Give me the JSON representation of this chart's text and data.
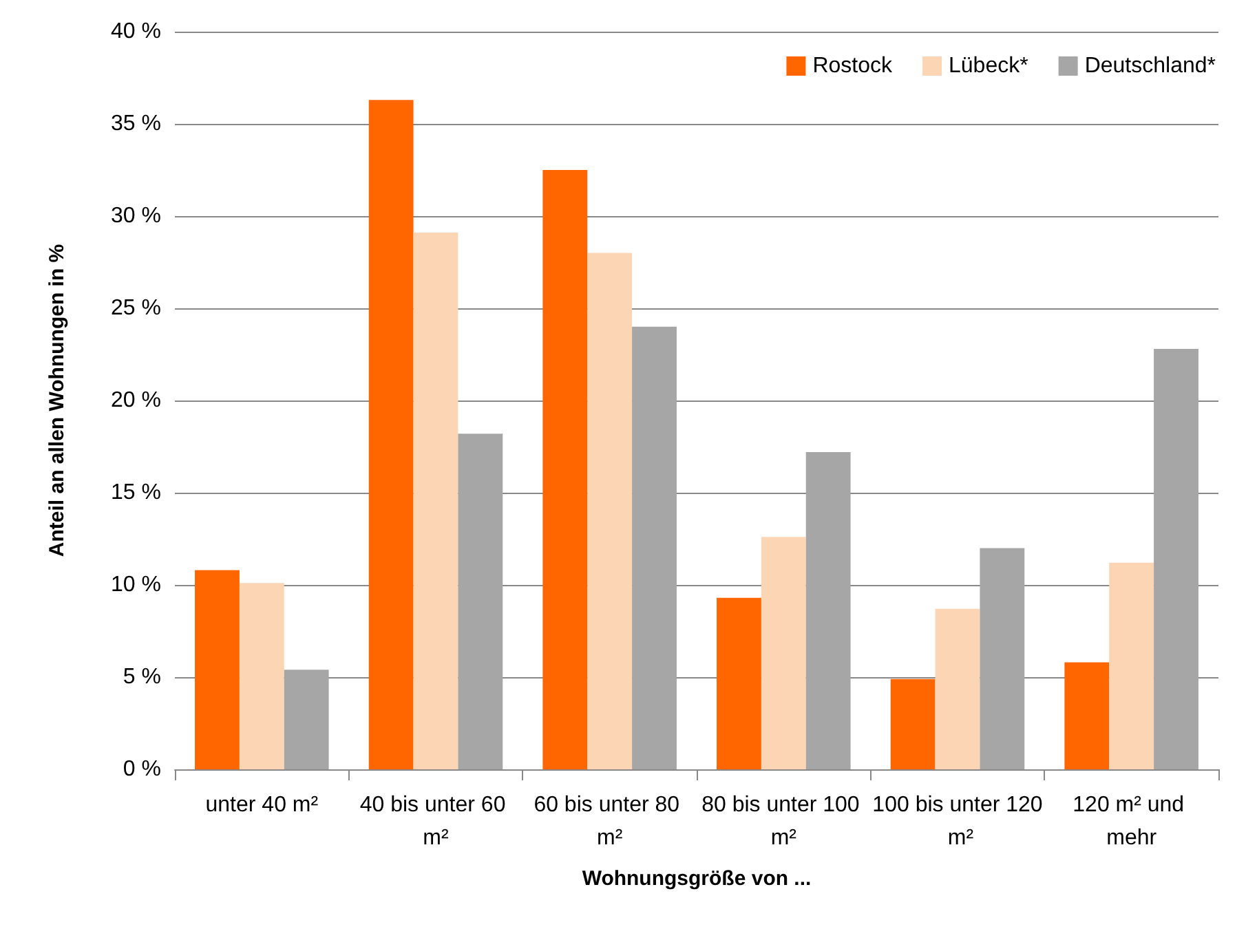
{
  "chart_data": {
    "type": "bar",
    "xlabel": "Wohnungsgröße von ...",
    "ylabel": "Anteil an allen Wohnungen in %",
    "categories": [
      "unter 40 m²",
      "40 bis unter 60 m²",
      "60 bis unter 80 m²",
      "80 bis unter 100 m²",
      "100 bis unter 120 m²",
      "120 m² und mehr"
    ],
    "series": [
      {
        "name": "Rostock",
        "color": "#ff6600",
        "values": [
          10.8,
          36.3,
          32.5,
          9.3,
          4.9,
          5.8
        ]
      },
      {
        "name": "Lübeck*",
        "color": "#fcd5b5",
        "values": [
          10.1,
          29.1,
          28.0,
          12.6,
          8.7,
          11.2
        ]
      },
      {
        "name": "Deutschland*",
        "color": "#a6a6a6",
        "values": [
          5.4,
          18.2,
          24.0,
          17.2,
          12.0,
          22.8
        ]
      }
    ],
    "ylim": [
      0,
      40
    ],
    "yticks": [
      {
        "value": 0,
        "label": "0 %"
      },
      {
        "value": 5,
        "label": "5 %"
      },
      {
        "value": 10,
        "label": "10 %"
      },
      {
        "value": 15,
        "label": "15 %"
      },
      {
        "value": 20,
        "label": "20 %"
      },
      {
        "value": 25,
        "label": "25 %"
      },
      {
        "value": 30,
        "label": "30 %"
      },
      {
        "value": 35,
        "label": "35 %"
      },
      {
        "value": 40,
        "label": "40 %"
      }
    ],
    "grid": "y",
    "legend": "top right"
  }
}
